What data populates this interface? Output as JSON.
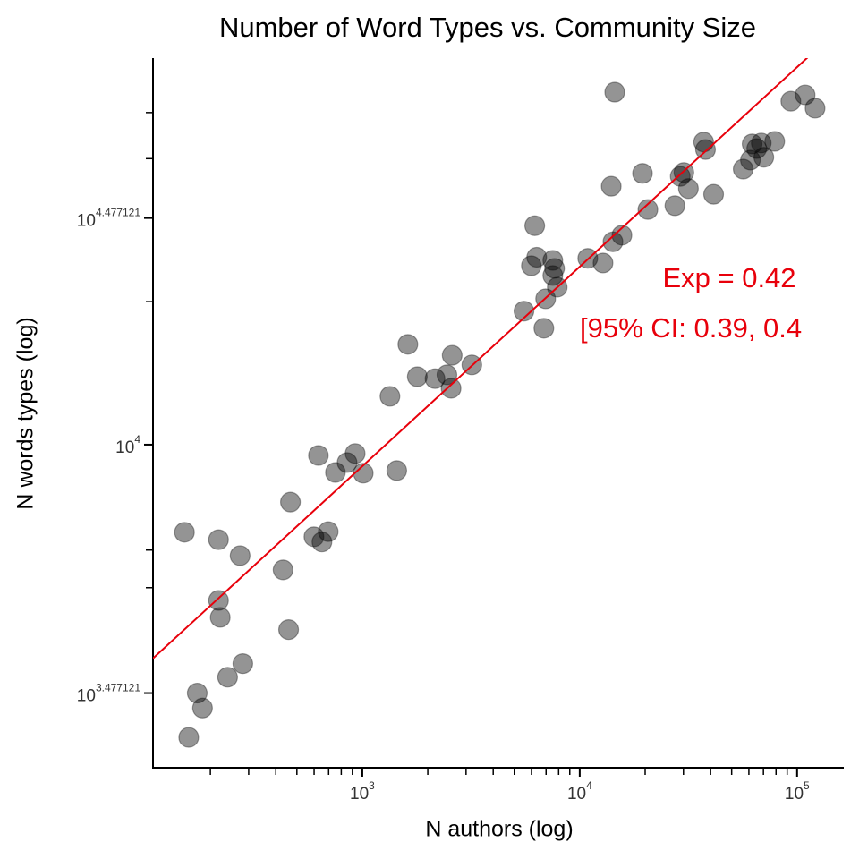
{
  "chart_data": {
    "type": "scatter",
    "title": "Number of Word Types vs. Community Size",
    "xlabel": "N authors (log)",
    "ylabel": "N words types (log)",
    "xscale": "log",
    "yscale": "log",
    "xlim": [
      108.9,
      164000
    ],
    "ylim": [
      2089,
      65100
    ],
    "xticks": [
      {
        "value": 1000,
        "label": "10^3"
      },
      {
        "value": 10000,
        "label": "10^4"
      },
      {
        "value": 100000,
        "label": "10^5"
      }
    ],
    "yticks": [
      {
        "value": 3000,
        "label": "10^3.477121"
      },
      {
        "value": 10000,
        "label": "10^4"
      },
      {
        "value": 30000,
        "label": "10^4.477121"
      }
    ],
    "xminorticks": [
      200,
      300,
      400,
      500,
      600,
      700,
      800,
      900,
      2000,
      3000,
      4000,
      5000,
      6000,
      7000,
      8000,
      9000,
      20000,
      30000,
      40000,
      50000,
      60000,
      70000,
      80000,
      90000
    ],
    "yminorticks": [
      5000,
      6000,
      20000,
      40000,
      50000
    ],
    "color": "#000000",
    "x": [
      152,
      159,
      174,
      184,
      218,
      218,
      222,
      240,
      274,
      282,
      432,
      458,
      467,
      628,
      599,
      652,
      697,
      752,
      851,
      927,
      1010,
      1340,
      1440,
      1620,
      1790,
      2160,
      2450,
      2560,
      2590,
      3190,
      5540,
      6210,
      5990,
      6340,
      6840,
      6970,
      7520,
      7660,
      7520,
      7880,
      10890,
      12800,
      14220,
      14490,
      13960,
      15640,
      19440,
      20590,
      27400,
      29000,
      30150,
      31620,
      37160,
      37900,
      41300,
      56500,
      61000,
      62100,
      65200,
      68400,
      70300,
      78900,
      93600,
      108900,
      121000
    ],
    "values": [
      6540,
      2420,
      3000,
      2790,
      6310,
      4700,
      4330,
      3240,
      5840,
      3460,
      5450,
      4080,
      7570,
      9490,
      6400,
      6240,
      6560,
      8740,
      9170,
      9580,
      8710,
      12640,
      8820,
      16260,
      13900,
      13770,
      14030,
      13140,
      15420,
      14720,
      19100,
      28900,
      23800,
      24800,
      17580,
      20280,
      24430,
      23500,
      22700,
      21450,
      24670,
      24120,
      26730,
      55200,
      34990,
      27600,
      37240,
      31260,
      31840,
      36710,
      37400,
      34600,
      43350,
      41800,
      33650,
      38020,
      39720,
      42950,
      42000,
      43150,
      40270,
      43490,
      52840,
      54480,
      51080
    ],
    "fit": {
      "coefficient": 495,
      "exponent": 0.42,
      "color": "#e8000b"
    },
    "annotations": [
      "Exp = 0.42",
      "[95% CI: 0.39, 0.4"
    ]
  }
}
